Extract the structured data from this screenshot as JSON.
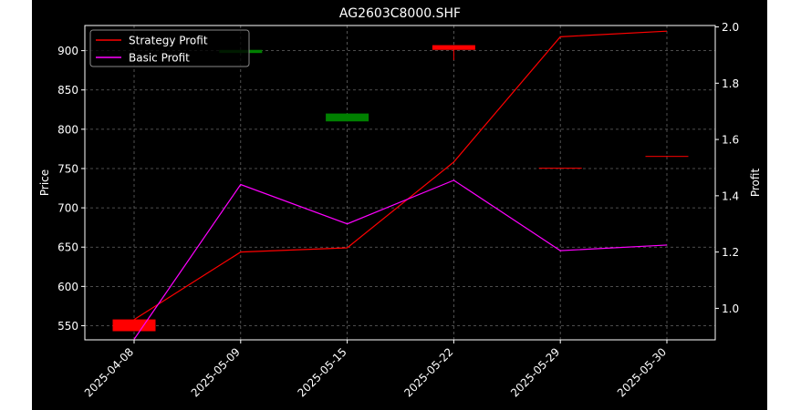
{
  "chart_data": {
    "type": "line",
    "title": "AG2603C8000.SHF",
    "categories": [
      "2025-04-08",
      "2025-05-09",
      "2025-05-15",
      "2025-05-22",
      "2025-05-29",
      "2025-05-30"
    ],
    "y_left": {
      "label": "Price",
      "range": [
        532,
        932
      ],
      "ticks": [
        550,
        600,
        650,
        700,
        750,
        800,
        850,
        900
      ]
    },
    "y_right": {
      "label": "Profit",
      "range": [
        0.888,
        2.005
      ],
      "ticks": [
        1.0,
        1.2,
        1.4,
        1.6,
        1.8,
        2.0
      ]
    },
    "grid": true,
    "legend": {
      "position": "top-left",
      "entries": [
        "Strategy Profit",
        "Basic Profit"
      ]
    },
    "series": [
      {
        "name": "Strategy Profit",
        "axis": "right",
        "color": "#ff0000",
        "values": [
          0.96,
          1.2,
          1.215,
          1.52,
          1.965,
          1.985
        ]
      },
      {
        "name": "Basic Profit",
        "axis": "right",
        "color": "#ff00ff",
        "values": [
          0.89,
          1.44,
          1.3,
          1.455,
          1.205,
          1.225
        ]
      }
    ],
    "candles": {
      "axis": "left",
      "items": [
        {
          "date": "2025-04-08",
          "open": 558,
          "close": 543,
          "high": 558,
          "low": 543,
          "color": "#ff0000"
        },
        {
          "date": "2025-05-09",
          "open": 901,
          "close": 897,
          "high": 901,
          "low": 897,
          "color": "#008000"
        },
        {
          "date": "2025-05-15",
          "open": 820,
          "close": 810,
          "high": 820,
          "low": 810,
          "color": "#008000"
        },
        {
          "date": "2025-05-22",
          "open": 901,
          "close": 907,
          "high": 907,
          "low": 888,
          "color": "#ff0000"
        },
        {
          "date": "2025-05-29",
          "open": 750,
          "close": 751,
          "high": 751,
          "low": 750,
          "color": "#ff0000"
        },
        {
          "date": "2025-05-30",
          "open": 765,
          "close": 766,
          "high": 766,
          "low": 765,
          "color": "#ff0000"
        }
      ]
    }
  }
}
